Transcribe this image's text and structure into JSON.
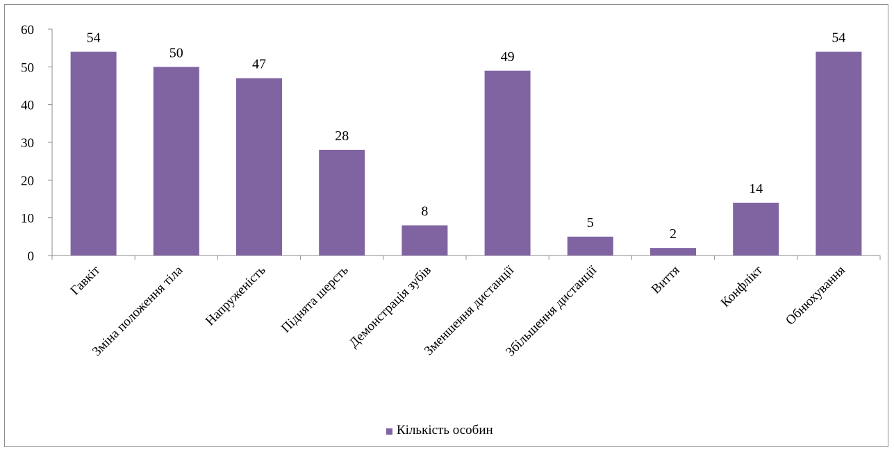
{
  "chart_data": {
    "type": "bar",
    "categories": [
      "Гавкіт",
      "Зміна положення тіла",
      "Напруженість",
      "Піднята шерсть",
      "Демонстрація зубів",
      "Зменшення дистанції",
      "Збільшення дистанції",
      "Виття",
      "Конфлікт",
      "Обнюхування"
    ],
    "series": [
      {
        "name": "Кількість особин",
        "values": [
          54,
          50,
          47,
          28,
          8,
          49,
          5,
          2,
          14,
          54
        ]
      }
    ],
    "ylim": [
      0,
      60
    ],
    "yticks": [
      0,
      10,
      20,
      30,
      40,
      50,
      60
    ],
    "gridlines": false,
    "legend_position": "bottom",
    "colors": {
      "bar": "#8064a2",
      "axis": "#8c8c8c"
    }
  }
}
